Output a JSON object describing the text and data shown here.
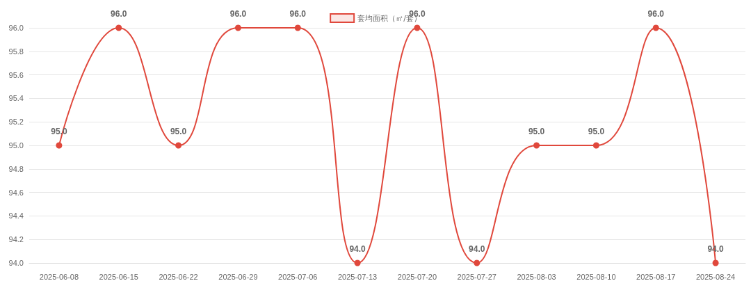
{
  "chart_data": {
    "type": "line",
    "categories": [
      "2025-06-08",
      "2025-06-15",
      "2025-06-22",
      "2025-06-29",
      "2025-07-06",
      "2025-07-13",
      "2025-07-20",
      "2025-07-27",
      "2025-08-03",
      "2025-08-10",
      "2025-08-17",
      "2025-08-24"
    ],
    "series": [
      {
        "name": "套均面积（㎡/套）",
        "color": "#e0483c",
        "values": [
          95,
          96,
          95,
          96,
          96,
          94,
          96,
          94,
          95,
          95,
          96,
          94
        ],
        "value_labels": [
          "95.0",
          "96.0",
          "95.0",
          "96.0",
          "96.0",
          "94.0",
          "96.0",
          "94.0",
          "95.0",
          "95.0",
          "96.0",
          "94.0"
        ]
      }
    ],
    "ylim": [
      94,
      96
    ],
    "yticks": [
      {
        "value": 94,
        "label": "94.0"
      },
      94.2,
      94.4,
      94.6,
      94.8,
      {
        "value": 95,
        "label": "95.0"
      },
      95.2,
      95.4,
      95.6,
      95.8,
      {
        "value": 96,
        "label": "96.0"
      }
    ],
    "grid": "y",
    "legend": "top",
    "marker": "circle",
    "line_style": "solid"
  }
}
